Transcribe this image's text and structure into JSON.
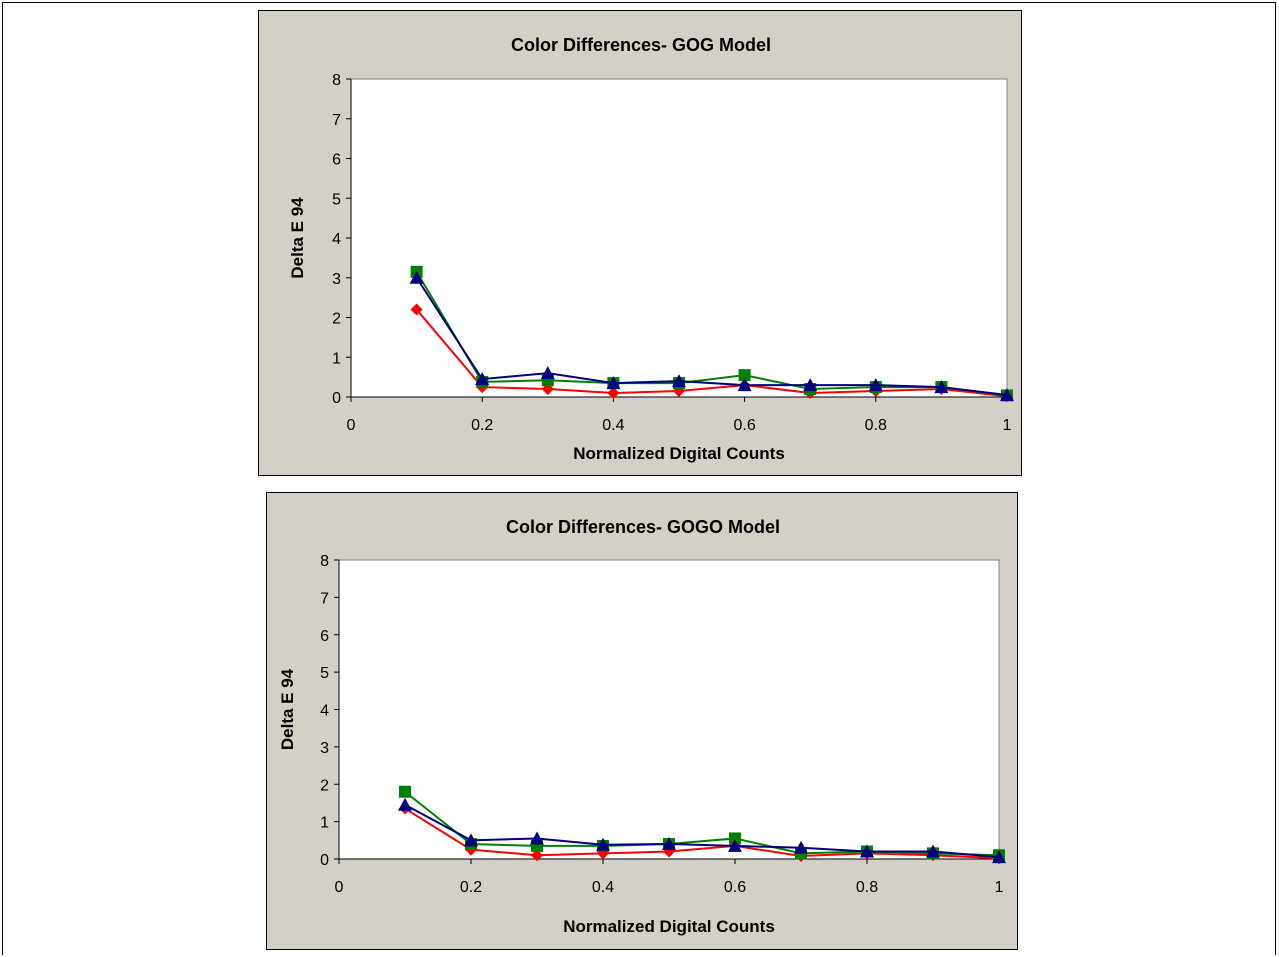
{
  "chart_data": [
    {
      "type": "line",
      "title": "Color Differences- GOG Model",
      "xlabel": "Normalized Digital Counts",
      "ylabel": "Delta E 94",
      "xlim": [
        0,
        1
      ],
      "ylim": [
        0,
        8
      ],
      "xticks": [
        "0",
        "0.2",
        "0.4",
        "0.6",
        "0.8",
        "1"
      ],
      "yticks": [
        "0",
        "1",
        "2",
        "3",
        "4",
        "5",
        "6",
        "7",
        "8"
      ],
      "grid": false,
      "legend": "none",
      "x": [
        0.1,
        0.2,
        0.3,
        0.4,
        0.5,
        0.6,
        0.7,
        0.8,
        0.9,
        1.0
      ],
      "series": [
        {
          "color": "#ff0000",
          "marker": "diamond",
          "values": [
            2.2,
            0.25,
            0.2,
            0.1,
            0.15,
            0.3,
            0.1,
            0.15,
            0.2,
            0.02
          ]
        },
        {
          "color": "#008000",
          "marker": "square",
          "values": [
            3.15,
            0.38,
            0.42,
            0.35,
            0.35,
            0.55,
            0.2,
            0.25,
            0.25,
            0.04
          ]
        },
        {
          "color": "#000080",
          "marker": "triangle",
          "values": [
            3.0,
            0.45,
            0.6,
            0.35,
            0.4,
            0.3,
            0.3,
            0.3,
            0.25,
            0.05
          ]
        }
      ]
    },
    {
      "type": "line",
      "title": "Color Differences- GOGO Model",
      "xlabel": "Normalized Digital Counts",
      "ylabel": "Delta E 94",
      "xlim": [
        0,
        1
      ],
      "ylim": [
        0,
        8
      ],
      "xticks": [
        "0",
        "0.2",
        "0.4",
        "0.6",
        "0.8",
        "1"
      ],
      "yticks": [
        "0",
        "1",
        "2",
        "3",
        "4",
        "5",
        "6",
        "7",
        "8"
      ],
      "grid": false,
      "legend": "none",
      "x": [
        0.1,
        0.2,
        0.3,
        0.4,
        0.5,
        0.6,
        0.7,
        0.8,
        0.9,
        1.0
      ],
      "series": [
        {
          "color": "#ff0000",
          "marker": "diamond",
          "values": [
            1.35,
            0.25,
            0.1,
            0.15,
            0.2,
            0.35,
            0.08,
            0.15,
            0.1,
            0.02
          ]
        },
        {
          "color": "#008000",
          "marker": "square",
          "values": [
            1.8,
            0.4,
            0.35,
            0.35,
            0.4,
            0.55,
            0.15,
            0.2,
            0.15,
            0.1
          ]
        },
        {
          "color": "#000080",
          "marker": "triangle",
          "values": [
            1.45,
            0.5,
            0.55,
            0.38,
            0.4,
            0.35,
            0.3,
            0.2,
            0.2,
            0.05
          ]
        }
      ]
    }
  ]
}
